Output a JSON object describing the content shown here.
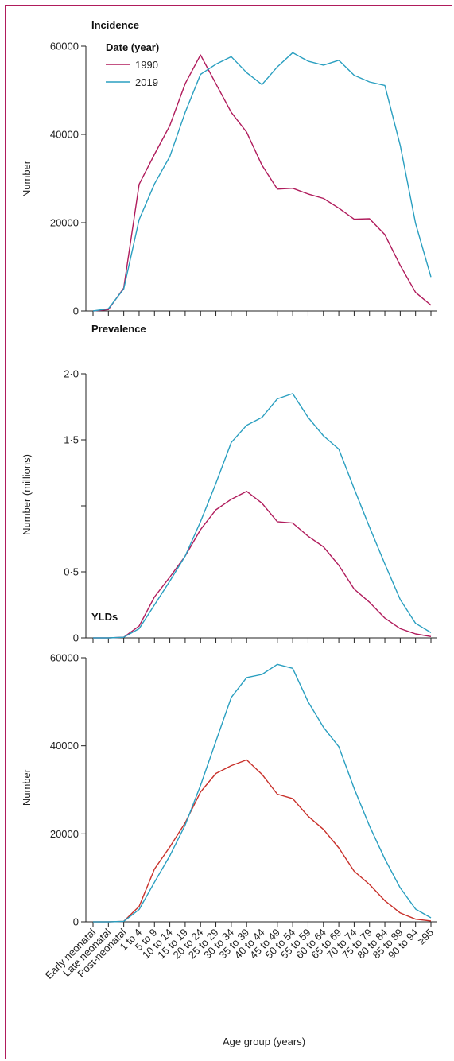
{
  "figure": {
    "xlabel": "Age group (years)",
    "legend": {
      "title": "Date (year)",
      "entries": [
        {
          "name": "1990",
          "color": "#b01c5c"
        },
        {
          "name": "2019",
          "color": "#2a9fc0"
        }
      ]
    },
    "frame_color": "#b01c5c"
  },
  "chart_data": [
    {
      "type": "line",
      "title": "Incidence",
      "ylabel": "Number",
      "ylim": [
        0,
        60000
      ],
      "yticks": [
        0,
        20000,
        40000,
        60000
      ],
      "ytick_labels": [
        "0",
        "20000",
        "40000",
        "60000"
      ],
      "categories": [
        "Early neonatal",
        "Late neonatal",
        "Post-neonatal",
        "1 to 4",
        "5 to 9",
        "10 to 14",
        "15 to 19",
        "20 to 24",
        "25 to 29",
        "30 to 34",
        "35 to 39",
        "40 to 44",
        "45 to 49",
        "50 to 54",
        "55 to 59",
        "60 to 64",
        "65 to 69",
        "70 to 74",
        "75 to 79",
        "80 to 84",
        "85 to 89",
        "90 to 94",
        "≥95"
      ],
      "series": [
        {
          "name": "1990",
          "color": "#b01c5c",
          "values": [
            0,
            300,
            5200,
            28700,
            35500,
            42000,
            51500,
            58000,
            51500,
            45000,
            40500,
            33000,
            27600,
            27800,
            26500,
            25500,
            23300,
            20800,
            20900,
            17300,
            10300,
            4200,
            1300
          ]
        },
        {
          "name": "2019",
          "color": "#2a9fc0",
          "values": [
            0,
            500,
            5000,
            20700,
            28800,
            35000,
            45000,
            53600,
            55900,
            57600,
            54000,
            51300,
            55300,
            58500,
            56600,
            55700,
            56800,
            53400,
            51900,
            51100,
            37500,
            19800,
            7700
          ]
        }
      ],
      "xticks_visible": false,
      "show_legend": true
    },
    {
      "type": "line",
      "title": "Prevalence",
      "ylabel": "Number (millions)",
      "ylim": [
        0,
        2.0
      ],
      "yticks": [
        0,
        0.5,
        1.0,
        1.5,
        2.0
      ],
      "ytick_labels": [
        "0",
        "0·5",
        "",
        "1·5",
        "2·0"
      ],
      "categories": [
        "Early neonatal",
        "Late neonatal",
        "Post-neonatal",
        "1 to 4",
        "5 to 9",
        "10 to 14",
        "15 to 19",
        "20 to 24",
        "25 to 29",
        "30 to 34",
        "35 to 39",
        "40 to 44",
        "45 to 49",
        "50 to 54",
        "55 to 59",
        "60 to 64",
        "65 to 69",
        "70 to 74",
        "75 to 79",
        "80 to 84",
        "85 to 89",
        "90 to 94",
        "≥95"
      ],
      "series": [
        {
          "name": "1990",
          "color": "#b01c5c",
          "values": [
            0,
            0,
            0.005,
            0.09,
            0.31,
            0.46,
            0.62,
            0.82,
            0.97,
            1.05,
            1.11,
            1.02,
            0.88,
            0.87,
            0.77,
            0.69,
            0.55,
            0.37,
            0.27,
            0.15,
            0.07,
            0.03,
            0.01
          ]
        },
        {
          "name": "2019",
          "color": "#2a9fc0",
          "values": [
            0,
            0,
            0.005,
            0.07,
            0.25,
            0.43,
            0.62,
            0.88,
            1.17,
            1.48,
            1.61,
            1.67,
            1.81,
            1.85,
            1.67,
            1.53,
            1.43,
            1.13,
            0.84,
            0.56,
            0.29,
            0.11,
            0.04
          ]
        }
      ],
      "xticks_visible": false,
      "show_legend": false
    },
    {
      "type": "line",
      "title": "YLDs",
      "ylabel": "Number",
      "ylim": [
        0,
        60000
      ],
      "yticks": [
        0,
        20000,
        40000,
        60000
      ],
      "ytick_labels": [
        "0",
        "20000",
        "40000",
        "60000"
      ],
      "categories": [
        "Early neonatal",
        "Late neonatal",
        "Post-neonatal",
        "1 to 4",
        "5 to 9",
        "10 to 14",
        "15 to 19",
        "20 to 24",
        "25 to 29",
        "30 to 34",
        "35 to 39",
        "40 to 44",
        "45 to 49",
        "50 to 54",
        "55 to 59",
        "60 to 64",
        "65 to 69",
        "70 to 74",
        "75 to 79",
        "80 to 84",
        "85 to 89",
        "90 to 94",
        "≥95"
      ],
      "series": [
        {
          "name": "1990",
          "color": "#c8302a",
          "values": [
            0,
            0,
            100,
            3500,
            12000,
            17000,
            22500,
            29500,
            33700,
            35500,
            36800,
            33500,
            29000,
            28000,
            24000,
            21000,
            16800,
            11500,
            8500,
            4800,
            2000,
            600,
            200
          ]
        },
        {
          "name": "2019",
          "color": "#2a9fc0",
          "values": [
            0,
            0,
            100,
            2800,
            9000,
            15000,
            22000,
            31000,
            41000,
            51000,
            55500,
            56200,
            58500,
            57600,
            50000,
            44200,
            39800,
            30300,
            21800,
            14300,
            7700,
            2900,
            900
          ]
        }
      ],
      "xticks_visible": true,
      "show_legend": false
    }
  ]
}
